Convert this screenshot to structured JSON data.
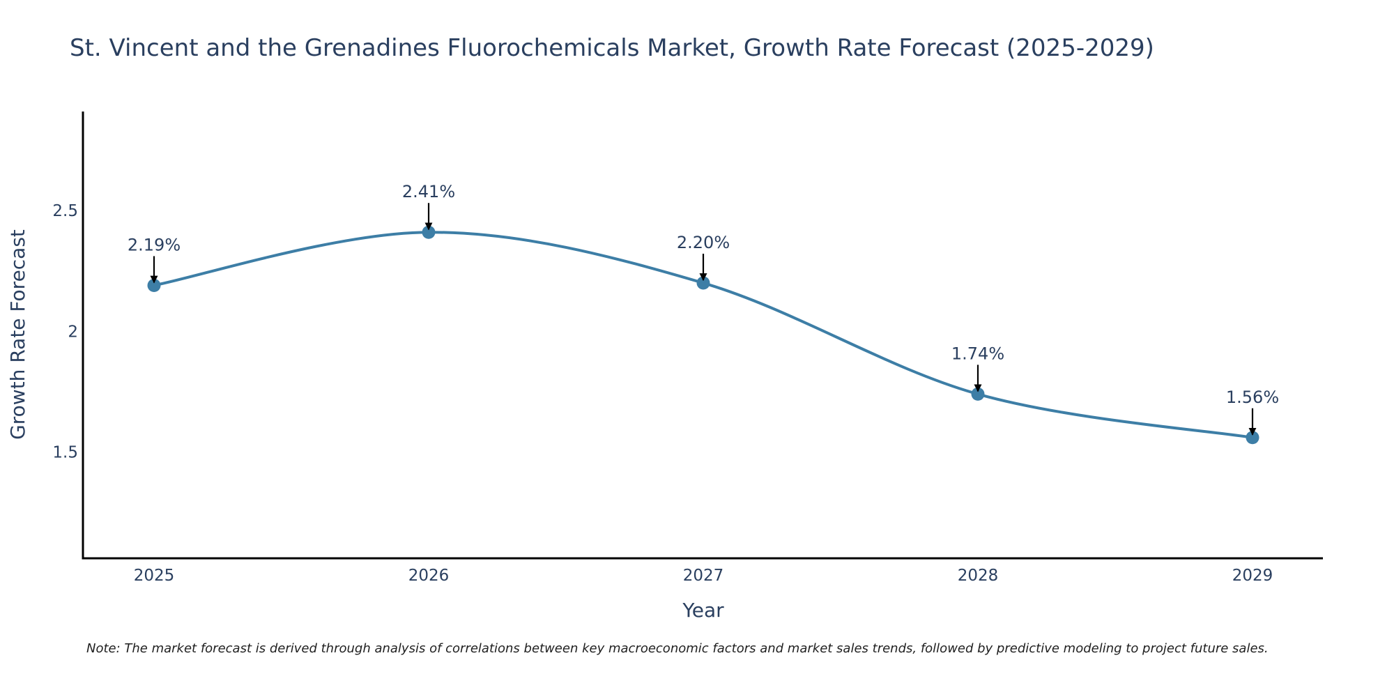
{
  "chart_data": {
    "type": "line",
    "title": "St. Vincent and the Grenadines Fluorochemicals Market, Growth Rate Forecast (2025-2029)",
    "xlabel": "Year",
    "ylabel": "Growth Rate Forecast",
    "categories": [
      "2025",
      "2026",
      "2027",
      "2028",
      "2029"
    ],
    "values": [
      2.19,
      2.41,
      2.2,
      1.74,
      1.56
    ],
    "data_labels": [
      "2.19%",
      "2.41%",
      "2.20%",
      "1.74%",
      "1.56%"
    ],
    "y_ticks": [
      1.5,
      2,
      2.5
    ],
    "y_tick_labels": [
      "1.5",
      "2",
      "2.5"
    ],
    "ylim": [
      1.06,
      2.91
    ],
    "line_color": "#3d7ea6",
    "marker_color": "#3d7ea6",
    "grid": false,
    "legend": "none"
  },
  "note": "Note: The market forecast is derived through analysis of correlations between key macroeconomic factors and market sales trends, followed by predictive modeling to project future sales."
}
